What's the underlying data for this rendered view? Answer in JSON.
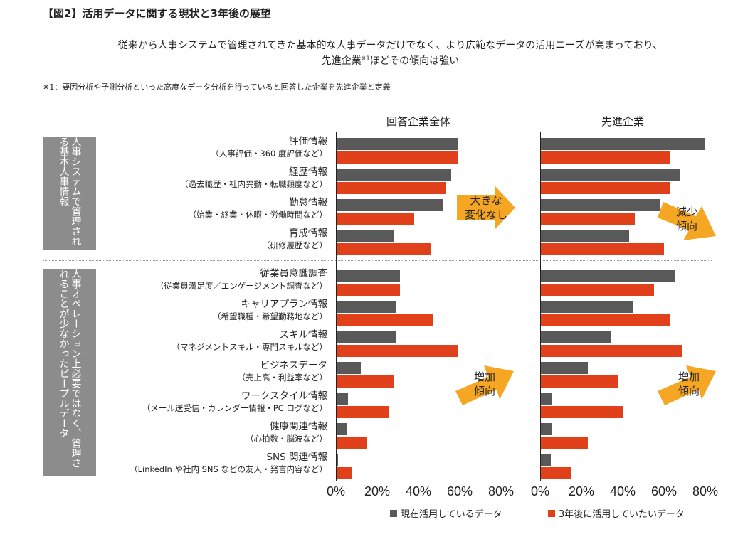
{
  "figure_label": "【図2】活用データに関する現状と3年後の展望",
  "subtitle_line1": "従来から人事システムで管理されてきた基本的な人事データだけでなく、より広範なデータの活用ニーズが高まっており、",
  "subtitle_line2_pre": "先進企業",
  "subtitle_line2_sup": "※1",
  "subtitle_line2_post": "ほどその傾向は強い",
  "footnote": "※1：要因分析や予測分析といった高度なデータ分析を行っていると回答した企業を先進企業と定義",
  "group_labels": [
    "人事システムで管理される基本人事情報",
    "人事オペレーション上必要ではなく、管理されることが少なかったピープルデータ"
  ],
  "arrows": [
    {
      "label1": "大きな",
      "label2": "変化なし"
    },
    {
      "label1": "減少",
      "label2": "傾向"
    },
    {
      "label1": "増加",
      "label2": "傾向"
    },
    {
      "label1": "増加",
      "label2": "傾向"
    }
  ],
  "colors": {
    "current": "#595959",
    "future": "#e0401a",
    "arrow": "#f5a623",
    "group_box": "#8c8c8c"
  },
  "chart_data": {
    "type": "bar",
    "orientation": "horizontal",
    "categories": [
      {
        "name": "評価情報",
        "detail": "（人事評価・360 度評価など）"
      },
      {
        "name": "経歴情報",
        "detail": "（過去職歴・社内異動・転職頻度など）"
      },
      {
        "name": "勤怠情報",
        "detail": "（始業・終業・休暇・労働時間など）"
      },
      {
        "name": "育成情報",
        "detail": "（研修履歴など）"
      },
      {
        "name": "従業員意識調査",
        "detail": "（従業員満足度／エンゲージメント調査など）"
      },
      {
        "name": "キャリアプラン情報",
        "detail": "（希望職種・希望勤務地など）"
      },
      {
        "name": "スキル情報",
        "detail": "（マネジメントスキル・専門スキルなど）"
      },
      {
        "name": "ビジネスデータ",
        "detail": "（売上高・利益率など）"
      },
      {
        "name": "ワークスタイル情報",
        "detail": "（メール送受信・カレンダー情報・PC ログなど）"
      },
      {
        "name": "健康関連情報",
        "detail": "（心拍数・脳波など）"
      },
      {
        "name": "SNS 関連情報",
        "detail": "（LinkedIn や社内 SNS などの友人・発言内容など）"
      }
    ],
    "panels": [
      {
        "title": "回答企業全体",
        "series": [
          {
            "name": "現在活用しているデータ",
            "values": [
              59,
              56,
              52,
              28,
              31,
              29,
              29,
              12,
              6,
              5,
              1
            ]
          },
          {
            "name": "3年後に活用していたいデータ",
            "values": [
              59,
              53,
              38,
              46,
              31,
              47,
              59,
              28,
              26,
              15,
              8
            ]
          }
        ]
      },
      {
        "title": "先進企業",
        "series": [
          {
            "name": "現在活用しているデータ",
            "values": [
              80,
              68,
              58,
              43,
              65,
              45,
              34,
              23,
              6,
              6,
              5
            ]
          },
          {
            "name": "3年後に活用していたいデータ",
            "values": [
              63,
              63,
              46,
              60,
              55,
              63,
              69,
              38,
              40,
              23,
              15
            ]
          }
        ]
      }
    ],
    "xlim": [
      0,
      80
    ],
    "xticks": [
      "0%",
      "20%",
      "40%",
      "60%",
      "80%"
    ],
    "legend": [
      "現在活用しているデータ",
      "3年後に活用していたいデータ"
    ],
    "legend_position": "bottom"
  }
}
